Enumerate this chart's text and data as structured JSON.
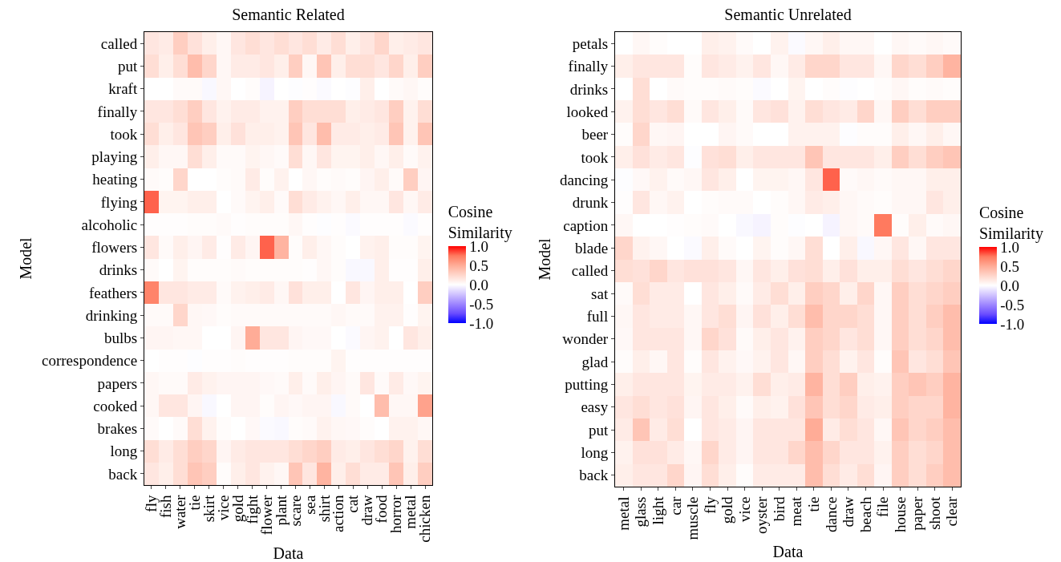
{
  "chart_data": [
    {
      "type": "heatmap",
      "title": "Semantic Related",
      "xlabel": "Data",
      "ylabel": "Model",
      "clabel": "Cosine Similarity",
      "clim": [
        -1,
        1
      ],
      "cticks": [
        {
          "value": -1,
          "label": "-1.0"
        },
        {
          "value": -0.5,
          "label": "-0.5"
        },
        {
          "value": 0,
          "label": "0.0"
        },
        {
          "value": 0.5,
          "label": "0.5"
        },
        {
          "value": 1,
          "label": "1.0"
        }
      ],
      "categories": [
        "fly",
        "fish",
        "water",
        "tie",
        "skirt",
        "vice",
        "gold",
        "fight",
        "flower",
        "plant",
        "scare",
        "sea",
        "shirt",
        "action",
        "cat",
        "draw",
        "food",
        "horror",
        "metal",
        "chicken"
      ],
      "y_categories": [
        "called",
        "put",
        "kraft",
        "finally",
        "took",
        "playing",
        "heating",
        "flying",
        "alcoholic",
        "flowers",
        "drinks",
        "feathers",
        "drinking",
        "bulbs",
        "correspondence",
        "papers",
        "cooked",
        "brakes",
        "long",
        "back"
      ],
      "cells": [
        [
          0.15,
          0.12,
          0.3,
          0.18,
          0.1,
          0.05,
          0.15,
          0.2,
          0.15,
          0.2,
          0.15,
          0.2,
          0.12,
          0.2,
          0.1,
          0.15,
          0.25,
          0.1,
          0.12,
          0.15
        ],
        [
          0.2,
          0.1,
          0.2,
          0.4,
          0.25,
          0.05,
          0.12,
          0.12,
          0.15,
          0.1,
          0.3,
          0.05,
          0.35,
          0.1,
          0.2,
          0.2,
          0.15,
          0.25,
          0.1,
          0.3
        ],
        [
          0,
          0,
          0.03,
          0.03,
          -0.03,
          0.05,
          0,
          0.02,
          -0.05,
          0,
          -0.01,
          0.01,
          -0.02,
          0,
          -0.01,
          0.1,
          0,
          0.03,
          0.05,
          0.02
        ],
        [
          0.15,
          0.15,
          0.2,
          0.3,
          0.15,
          0.08,
          0.12,
          0.12,
          0.08,
          0.08,
          0.3,
          0.2,
          0.2,
          0.2,
          0.1,
          0.12,
          0.15,
          0.3,
          0.08,
          0.2
        ],
        [
          0.2,
          0.1,
          0.15,
          0.35,
          0.3,
          0.1,
          0.18,
          0.1,
          0.1,
          0.08,
          0.35,
          0.15,
          0.4,
          0.12,
          0.12,
          0.1,
          0.12,
          0.35,
          0.08,
          0.35
        ],
        [
          0.1,
          0.05,
          0.05,
          0.2,
          0.1,
          0.03,
          0.03,
          0.07,
          0.05,
          0.03,
          0.2,
          0.05,
          0.15,
          0.07,
          0.07,
          0.1,
          0.05,
          0.1,
          0.03,
          0.08
        ],
        [
          0.03,
          0.02,
          0.25,
          0,
          0,
          0.02,
          0.03,
          0.12,
          0.02,
          0.08,
          0,
          0.05,
          0.02,
          0.03,
          0.02,
          0.06,
          0.1,
          0.03,
          0.3,
          0.06
        ],
        [
          0.8,
          0.07,
          0.07,
          0.1,
          0.1,
          0,
          0.03,
          0.07,
          0.1,
          0.03,
          0.2,
          0.12,
          0.08,
          0.05,
          0.1,
          0.05,
          0.05,
          0.15,
          0.05,
          0.12
        ],
        [
          0.01,
          0.01,
          0.01,
          0.02,
          0.02,
          0.03,
          0.01,
          0.02,
          0.02,
          0.02,
          0.05,
          0.01,
          -0.01,
          0.01,
          -0.02,
          0.01,
          0.01,
          0.01,
          -0.02,
          0.01
        ],
        [
          0.15,
          0.03,
          0.1,
          0.06,
          0.12,
          0.01,
          0.12,
          0.06,
          0.8,
          0.45,
          0.02,
          0.1,
          0.05,
          0.02,
          0,
          0.08,
          0.1,
          0.02,
          0.02,
          0.07
        ],
        [
          0.03,
          0,
          0.07,
          0.02,
          0.02,
          0.02,
          0.03,
          0.02,
          0.02,
          0.02,
          0.02,
          0.01,
          0.05,
          0.02,
          -0.03,
          -0.03,
          0.1,
          0.01,
          0.01,
          0.1
        ],
        [
          0.7,
          0.15,
          0.15,
          0.12,
          0.12,
          0.03,
          0.08,
          0.1,
          0.12,
          0.05,
          0.18,
          0.1,
          0.1,
          0,
          0.15,
          0.06,
          0.1,
          0.1,
          0,
          0.3
        ],
        [
          0.03,
          0.03,
          0.25,
          0.05,
          0.04,
          0.02,
          0.03,
          0.03,
          0.03,
          0.03,
          0.03,
          0.03,
          0.03,
          0.05,
          0.03,
          0.03,
          0.08,
          0.08,
          0.01,
          0.07
        ],
        [
          0.06,
          0.06,
          0.05,
          0.05,
          0,
          0,
          0.06,
          0.5,
          0.15,
          0.15,
          0.06,
          0.04,
          0.04,
          0,
          -0.02,
          0.06,
          0.08,
          0,
          0.15,
          0.1
        ],
        [
          0,
          0.01,
          0.01,
          -0.01,
          0.01,
          0.01,
          0.02,
          0.01,
          0.01,
          0.01,
          0.02,
          0.02,
          0.02,
          0.07,
          0.01,
          0.01,
          0.01,
          0.01,
          0.01,
          0.01
        ],
        [
          0.05,
          0.03,
          0.03,
          0.12,
          0.08,
          0.06,
          0.06,
          0.06,
          0.04,
          0.03,
          0.1,
          0.03,
          0.1,
          0.06,
          0.03,
          0.15,
          0.03,
          0.12,
          0.04,
          0.07
        ],
        [
          0.05,
          0.15,
          0.15,
          0.06,
          -0.03,
          0,
          0.06,
          0.06,
          0.02,
          0.06,
          0.04,
          0.06,
          0.06,
          -0.03,
          0.03,
          0,
          0.4,
          0.05,
          0.05,
          0.55
        ],
        [
          0.03,
          0,
          0.03,
          0.2,
          0.08,
          0.02,
          0,
          0.04,
          -0.02,
          -0.03,
          0.02,
          0.03,
          0.08,
          0.05,
          0.04,
          0.02,
          0,
          0.08,
          0.08,
          0.05
        ],
        [
          0.2,
          0.12,
          0.2,
          0.3,
          0.25,
          0.06,
          0.12,
          0.15,
          0.15,
          0.15,
          0.2,
          0.25,
          0.3,
          0.12,
          0.1,
          0.15,
          0.2,
          0.25,
          0.08,
          0.2
        ],
        [
          0.15,
          0.1,
          0.2,
          0.35,
          0.3,
          0.02,
          0.1,
          0.15,
          0.08,
          0.05,
          0.35,
          0.15,
          0.45,
          0.1,
          0.2,
          0.12,
          0.12,
          0.35,
          0.1,
          0.3
        ]
      ]
    },
    {
      "type": "heatmap",
      "title": "Semantic Unrelated",
      "xlabel": "Data",
      "ylabel": "Model",
      "clabel": "Cosine Similarity",
      "clim": [
        -1,
        1
      ],
      "cticks": [
        {
          "value": -1,
          "label": "-1.0"
        },
        {
          "value": -0.5,
          "label": "-0.5"
        },
        {
          "value": 0,
          "label": "0.0"
        },
        {
          "value": 0.5,
          "label": "0.5"
        },
        {
          "value": 1,
          "label": "1.0"
        }
      ],
      "categories": [
        "metal",
        "glass",
        "light",
        "car",
        "muscle",
        "fly",
        "gold",
        "vice",
        "oyster",
        "bird",
        "meat",
        "tie",
        "dance",
        "draw",
        "beach",
        "file",
        "house",
        "paper",
        "shoot",
        "clear"
      ],
      "y_categories": [
        "petals",
        "finally",
        "drinks",
        "looked",
        "beer",
        "took",
        "dancing",
        "drunk",
        "caption",
        "blade",
        "called",
        "sat",
        "full",
        "wonder",
        "glad",
        "putting",
        "easy",
        "put",
        "long",
        "back"
      ],
      "cells": [
        [
          0,
          0.05,
          0.02,
          0,
          0,
          0.1,
          0.08,
          0.03,
          0,
          0.08,
          -0.02,
          0.05,
          0.1,
          0.05,
          0.05,
          0,
          0.05,
          0.03,
          0.05,
          0.03
        ],
        [
          0.1,
          0.15,
          0.15,
          0.15,
          0.02,
          0.15,
          0.12,
          0.08,
          0.15,
          0.05,
          0.12,
          0.25,
          0.25,
          0.15,
          0.15,
          0.05,
          0.25,
          0.2,
          0.3,
          0.45
        ],
        [
          0,
          0.2,
          0,
          0.03,
          0.02,
          0.02,
          0.03,
          0.02,
          -0.02,
          0,
          0.07,
          0,
          0.02,
          -0.01,
          0,
          0.02,
          0.05,
          0.02,
          0.03,
          0.02
        ],
        [
          0.08,
          0.2,
          0.15,
          0.2,
          0.03,
          0.15,
          0.1,
          0.03,
          0.15,
          0.18,
          0.08,
          0.2,
          0.15,
          0.12,
          0.25,
          0.05,
          0.3,
          0.2,
          0.3,
          0.3
        ],
        [
          0.02,
          0.25,
          0.05,
          0.06,
          0,
          0,
          0.06,
          0.03,
          0,
          0,
          0.08,
          0.08,
          0.08,
          -0.01,
          0.02,
          0.02,
          0.1,
          0.05,
          0.1,
          0.05
        ],
        [
          0.1,
          0.18,
          0.12,
          0.15,
          -0.01,
          0.18,
          0.2,
          0.1,
          0.15,
          0.15,
          0.15,
          0.35,
          0.15,
          0.15,
          0.15,
          0.1,
          0.3,
          0.2,
          0.3,
          0.35
        ],
        [
          -0.01,
          0.04,
          0.08,
          0.03,
          0.05,
          0.15,
          0.1,
          0,
          0.07,
          0.07,
          0.05,
          0.15,
          0.8,
          0.03,
          0.05,
          0.03,
          0.05,
          0.05,
          0.1,
          0.1
        ],
        [
          0.01,
          0.15,
          0.05,
          0.08,
          0,
          0.02,
          0.03,
          0.03,
          0,
          0.02,
          0.05,
          0.12,
          0.1,
          0.05,
          0.03,
          0.02,
          0.05,
          0.05,
          0.15,
          0.1
        ],
        [
          0.05,
          0,
          0,
          0.01,
          0.02,
          0.03,
          0,
          -0.03,
          -0.05,
          0.02,
          -0.01,
          0,
          -0.05,
          0.05,
          0.03,
          0.75,
          0.02,
          0.1,
          0.03,
          0.05
        ],
        [
          0.25,
          0.08,
          0.05,
          0,
          -0.02,
          0.1,
          0.03,
          0,
          0.07,
          0.02,
          0.05,
          0.2,
          0,
          0.1,
          -0.03,
          0.05,
          0.15,
          0.05,
          0.15,
          0.15
        ],
        [
          0.2,
          0.18,
          0.25,
          0.15,
          0.18,
          0.18,
          0.15,
          0.05,
          0.15,
          0.1,
          0.18,
          0.2,
          0.1,
          0.18,
          0.1,
          0.1,
          0.2,
          0.15,
          0.2,
          0.25
        ],
        [
          0.03,
          0.2,
          0.12,
          0.12,
          0,
          0.15,
          0.1,
          0.03,
          0.12,
          0.2,
          0.1,
          0.3,
          0.25,
          0.1,
          0.25,
          0.05,
          0.3,
          0.2,
          0.25,
          0.3
        ],
        [
          0.05,
          0.15,
          0.12,
          0.12,
          0.05,
          0.15,
          0.2,
          0.06,
          0.18,
          0.1,
          0.2,
          0.4,
          0.25,
          0.25,
          0.2,
          0.05,
          0.3,
          0.2,
          0.3,
          0.4
        ],
        [
          0.04,
          0.15,
          0.15,
          0.15,
          0.05,
          0.25,
          0.18,
          0.03,
          0.1,
          0.15,
          0.08,
          0.3,
          0.25,
          0.15,
          0.2,
          0.05,
          0.3,
          0.2,
          0.25,
          0.4
        ],
        [
          0.02,
          0.1,
          0.05,
          0.15,
          0.02,
          0.15,
          0.08,
          0.04,
          0.08,
          0.15,
          0.05,
          0.3,
          0.2,
          0.08,
          0.15,
          0.02,
          0.35,
          0.15,
          0.2,
          0.35
        ],
        [
          0.1,
          0.15,
          0.15,
          0.15,
          0.07,
          0.12,
          0.12,
          0.08,
          0.2,
          0.1,
          0.12,
          0.45,
          0.2,
          0.3,
          0.1,
          0.08,
          0.3,
          0.35,
          0.3,
          0.45
        ],
        [
          0.15,
          0.2,
          0.15,
          0.18,
          0.06,
          0.15,
          0.1,
          0.03,
          0.1,
          0.08,
          0.18,
          0.35,
          0.2,
          0.25,
          0.12,
          0.1,
          0.3,
          0.25,
          0.25,
          0.45
        ],
        [
          0.12,
          0.35,
          0.12,
          0.2,
          0,
          0.15,
          0.12,
          0.06,
          0.15,
          0.15,
          0.15,
          0.5,
          0.12,
          0.2,
          0.15,
          0.05,
          0.35,
          0.25,
          0.3,
          0.4
        ],
        [
          0.08,
          0.18,
          0.18,
          0.12,
          0.05,
          0.25,
          0.12,
          0.06,
          0.15,
          0.15,
          0.25,
          0.4,
          0.25,
          0.15,
          0.15,
          0.08,
          0.3,
          0.2,
          0.25,
          0.4
        ],
        [
          0.1,
          0.15,
          0.15,
          0.25,
          0.06,
          0.2,
          0.1,
          0.02,
          0.12,
          0.12,
          0.12,
          0.4,
          0.2,
          0.12,
          0.2,
          0.06,
          0.3,
          0.2,
          0.3,
          0.4
        ]
      ]
    }
  ]
}
